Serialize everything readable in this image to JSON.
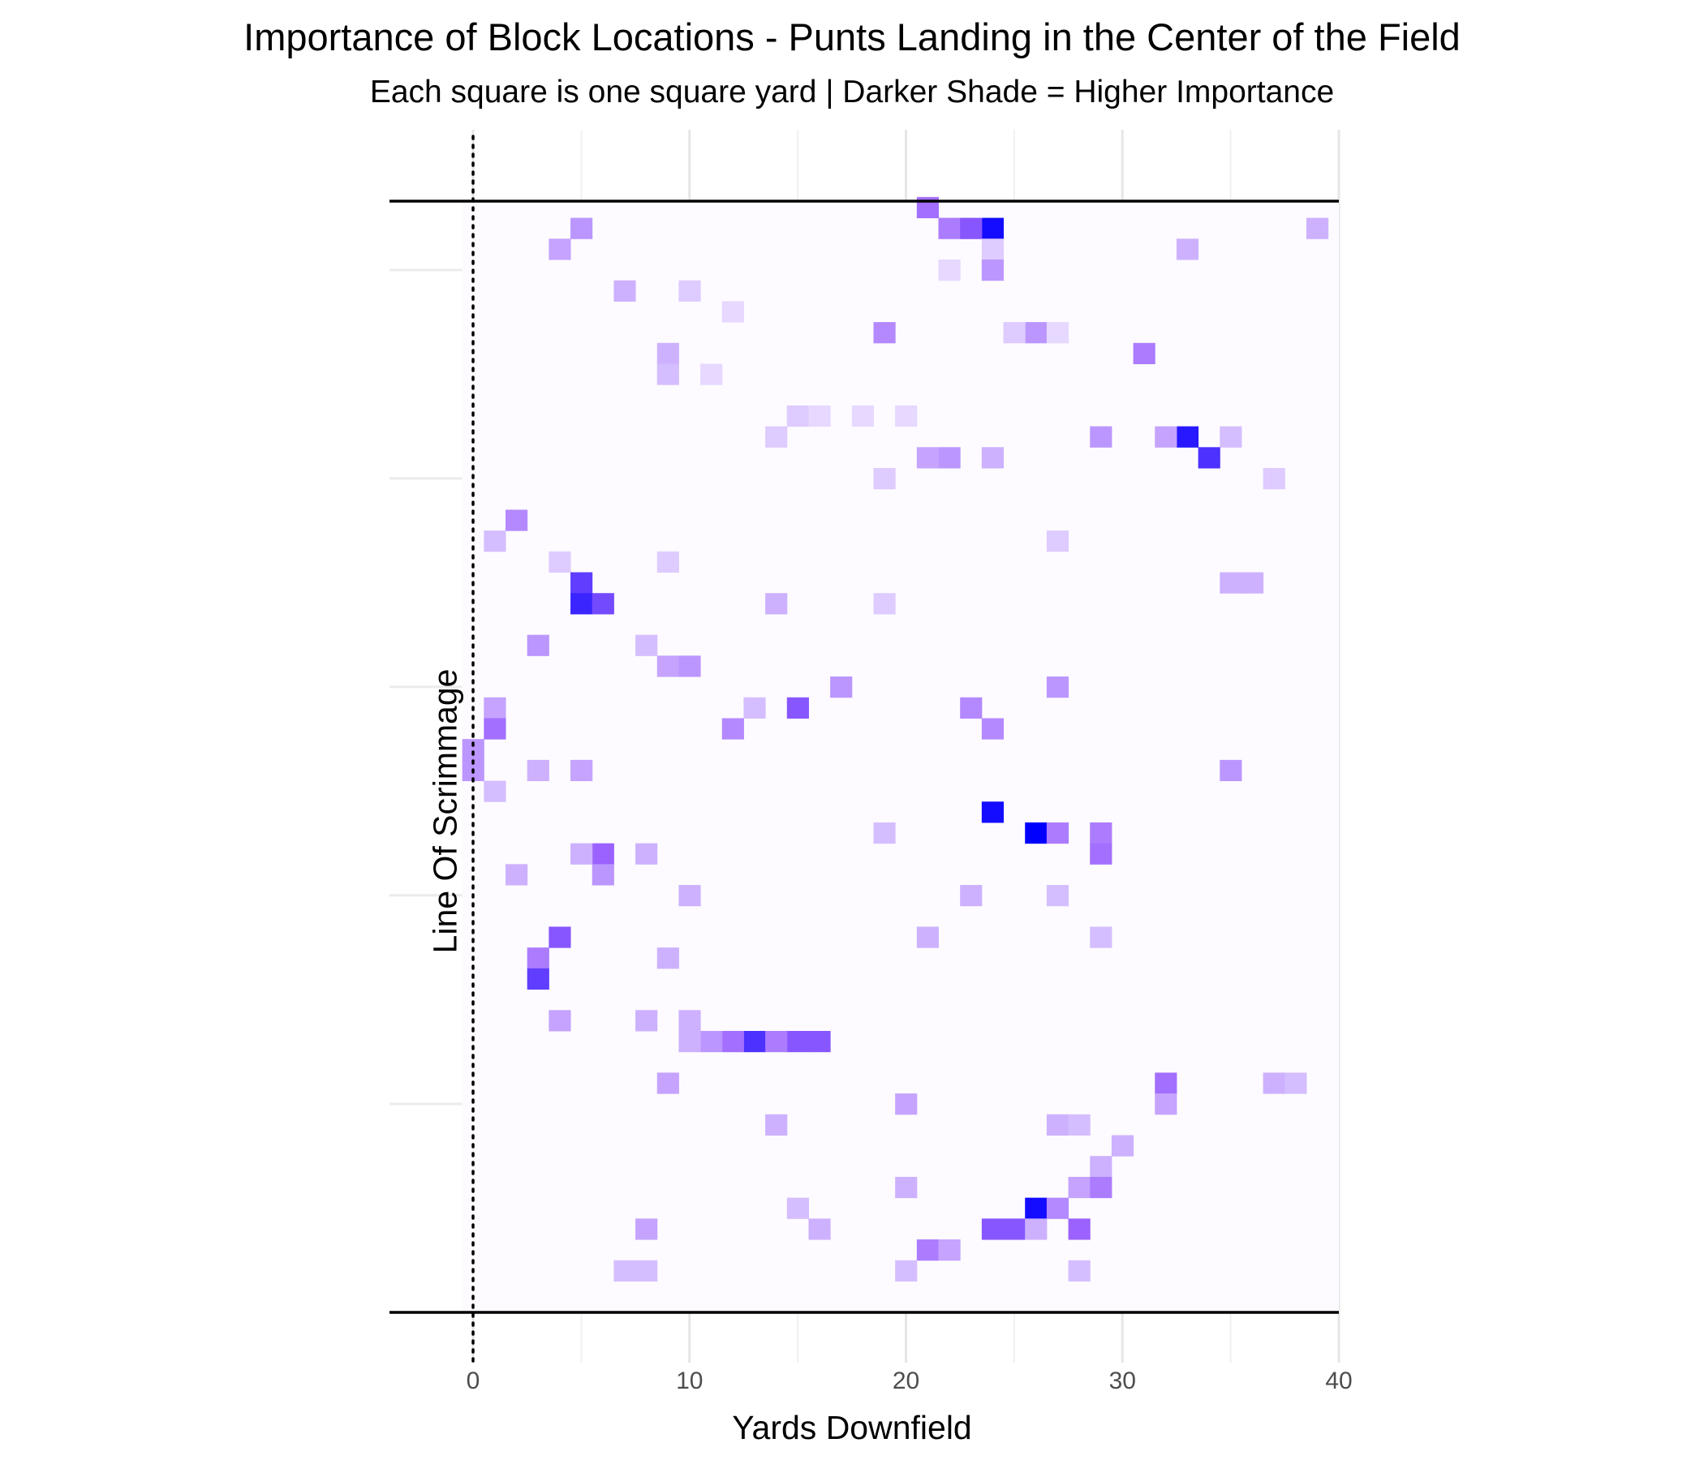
{
  "chart_data": {
    "type": "heatmap",
    "title": "Importance of Block Locations - Punts Landing in the Center of the Field",
    "subtitle": "Each square is one square yard | Darker Shade = Higher Importance",
    "xlabel": "Yards Downfield",
    "ylabel": "Line Of Scrimmage",
    "xlim": [
      -4,
      41.5
    ],
    "ylim": [
      -5.5,
      53.3
    ],
    "xticks": [
      0,
      10,
      20,
      30,
      40
    ],
    "grid": true,
    "legend": "none",
    "colors": {
      "low": "#ffffff",
      "high": "#0000ff",
      "mid": "#9b62ff",
      "reference_lines": "#000000"
    },
    "line_of_scrimmage_x": 0,
    "field_edges_y": [
      0,
      53.3
    ],
    "cells": [
      [
        24,
        52,
        0.95
      ],
      [
        21,
        53,
        0.55
      ],
      [
        22,
        52,
        0.5
      ],
      [
        23,
        52,
        0.65
      ],
      [
        5,
        52,
        0.4
      ],
      [
        39,
        52,
        0.3
      ],
      [
        4,
        51,
        0.35
      ],
      [
        24,
        51,
        0.2
      ],
      [
        33,
        51,
        0.3
      ],
      [
        24,
        50,
        0.4
      ],
      [
        22,
        50,
        0.15
      ],
      [
        7,
        49,
        0.3
      ],
      [
        10,
        49,
        0.2
      ],
      [
        12,
        48,
        0.15
      ],
      [
        19,
        47,
        0.45
      ],
      [
        26,
        47,
        0.4
      ],
      [
        25,
        47,
        0.2
      ],
      [
        27,
        47,
        0.15
      ],
      [
        31,
        46,
        0.5
      ],
      [
        9,
        46,
        0.3
      ],
      [
        9,
        45,
        0.25
      ],
      [
        11,
        45,
        0.15
      ],
      [
        15,
        43,
        0.2
      ],
      [
        16,
        43,
        0.15
      ],
      [
        18,
        43,
        0.15
      ],
      [
        20,
        43,
        0.15
      ],
      [
        33,
        42,
        0.9
      ],
      [
        32,
        42,
        0.35
      ],
      [
        29,
        42,
        0.4
      ],
      [
        35,
        42,
        0.25
      ],
      [
        14,
        42,
        0.2
      ],
      [
        34,
        41,
        0.8
      ],
      [
        22,
        41,
        0.4
      ],
      [
        21,
        41,
        0.35
      ],
      [
        24,
        41,
        0.3
      ],
      [
        19,
        40,
        0.2
      ],
      [
        37,
        40,
        0.2
      ],
      [
        2,
        38,
        0.45
      ],
      [
        1,
        37,
        0.25
      ],
      [
        27,
        37,
        0.2
      ],
      [
        4,
        36,
        0.2
      ],
      [
        9,
        36,
        0.2
      ],
      [
        5,
        35,
        0.75
      ],
      [
        36,
        35,
        0.3
      ],
      [
        35,
        35,
        0.3
      ],
      [
        5,
        34,
        0.85
      ],
      [
        6,
        34,
        0.7
      ],
      [
        14,
        34,
        0.3
      ],
      [
        19,
        34,
        0.2
      ],
      [
        3,
        32,
        0.4
      ],
      [
        8,
        32,
        0.25
      ],
      [
        9,
        31,
        0.35
      ],
      [
        10,
        31,
        0.4
      ],
      [
        17,
        30,
        0.4
      ],
      [
        27,
        30,
        0.4
      ],
      [
        15,
        29,
        0.65
      ],
      [
        23,
        29,
        0.45
      ],
      [
        1,
        29,
        0.35
      ],
      [
        13,
        29,
        0.25
      ],
      [
        1,
        28,
        0.55
      ],
      [
        12,
        28,
        0.45
      ],
      [
        24,
        28,
        0.45
      ],
      [
        0,
        27,
        0.4
      ],
      [
        3,
        26,
        0.3
      ],
      [
        5,
        26,
        0.35
      ],
      [
        35,
        26,
        0.4
      ],
      [
        0,
        26,
        0.4
      ],
      [
        1,
        25,
        0.25
      ],
      [
        24,
        24,
        0.95
      ],
      [
        26,
        23,
        1.0
      ],
      [
        27,
        23,
        0.5
      ],
      [
        29,
        23,
        0.5
      ],
      [
        19,
        23,
        0.25
      ],
      [
        29,
        22,
        0.55
      ],
      [
        6,
        22,
        0.6
      ],
      [
        5,
        22,
        0.3
      ],
      [
        8,
        22,
        0.3
      ],
      [
        6,
        21,
        0.4
      ],
      [
        2,
        21,
        0.3
      ],
      [
        10,
        20,
        0.3
      ],
      [
        23,
        20,
        0.3
      ],
      [
        27,
        20,
        0.25
      ],
      [
        4,
        18,
        0.65
      ],
      [
        21,
        18,
        0.3
      ],
      [
        29,
        18,
        0.25
      ],
      [
        3,
        17,
        0.5
      ],
      [
        9,
        17,
        0.3
      ],
      [
        3,
        16,
        0.75
      ],
      [
        4,
        14,
        0.35
      ],
      [
        8,
        14,
        0.3
      ],
      [
        10,
        14,
        0.3
      ],
      [
        13,
        13,
        0.8
      ],
      [
        15,
        13,
        0.65
      ],
      [
        16,
        13,
        0.65
      ],
      [
        14,
        13,
        0.5
      ],
      [
        12,
        13,
        0.55
      ],
      [
        11,
        13,
        0.4
      ],
      [
        10,
        13,
        0.3
      ],
      [
        32,
        11,
        0.55
      ],
      [
        9,
        11,
        0.35
      ],
      [
        37,
        11,
        0.3
      ],
      [
        38,
        11,
        0.25
      ],
      [
        20,
        10,
        0.35
      ],
      [
        32,
        10,
        0.35
      ],
      [
        14,
        9,
        0.3
      ],
      [
        27,
        9,
        0.3
      ],
      [
        28,
        9,
        0.25
      ],
      [
        30,
        8,
        0.3
      ],
      [
        29,
        7,
        0.3
      ],
      [
        28,
        6,
        0.35
      ],
      [
        29,
        6,
        0.5
      ],
      [
        20,
        6,
        0.3
      ],
      [
        26,
        5,
        0.95
      ],
      [
        27,
        5,
        0.45
      ],
      [
        15,
        5,
        0.25
      ],
      [
        24,
        4,
        0.65
      ],
      [
        25,
        4,
        0.65
      ],
      [
        28,
        4,
        0.6
      ],
      [
        26,
        4,
        0.3
      ],
      [
        8,
        4,
        0.35
      ],
      [
        16,
        4,
        0.3
      ],
      [
        21,
        3,
        0.5
      ],
      [
        22,
        3,
        0.35
      ],
      [
        7,
        2,
        0.25
      ],
      [
        8,
        2,
        0.25
      ],
      [
        20,
        2,
        0.25
      ],
      [
        28,
        2,
        0.25
      ]
    ]
  }
}
